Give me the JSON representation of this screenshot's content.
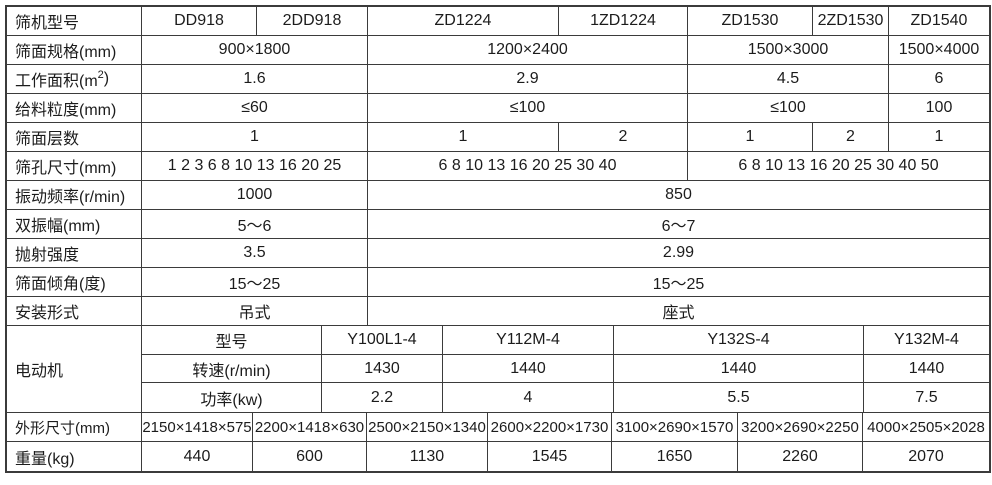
{
  "colors": {
    "background": "#ffffff",
    "border": "#3b3b3b",
    "text": "#1c1c1c"
  },
  "table": {
    "rows": {
      "model": {
        "label": "筛机型号",
        "values": [
          "DD918",
          "2DD918",
          "ZD1224",
          "1ZD1224",
          "ZD1530",
          "2ZD1530",
          "ZD1540"
        ]
      },
      "screen_spec": {
        "label": "筛面规格(mm)",
        "values": [
          "900×1800",
          "1200×2400",
          "1500×3000",
          "1500×4000"
        ]
      },
      "work_area": {
        "label_prefix": "工作面积(m",
        "label_sup": "2",
        "label_suffix": ")",
        "values": [
          "1.6",
          "2.9",
          "4.5",
          "6"
        ]
      },
      "feed_size": {
        "label": "给料粒度(mm)",
        "values": [
          "≤60",
          "≤100",
          "≤100",
          "100"
        ]
      },
      "layers": {
        "label": "筛面层数",
        "values": [
          "1",
          "1",
          "2",
          "1",
          "2",
          "1"
        ]
      },
      "mesh_size": {
        "label": "筛孔尺寸(mm)",
        "values": [
          "1 2 3 6 8 10 13 16 20 25",
          "6 8 10 13 16 20 25 30 40",
          "6 8 10 13 16 20 25 30 40 50"
        ]
      },
      "frequency": {
        "label": "振动频率(r/min)",
        "values": [
          "1000",
          "850"
        ]
      },
      "amplitude": {
        "label": "双振幅(mm)",
        "values": [
          "5～6",
          "6～7"
        ]
      },
      "throw_intensity": {
        "label": "抛射强度",
        "values": [
          "3.5",
          "2.99"
        ]
      },
      "incline": {
        "label": "筛面倾角(度)",
        "values": [
          "15～25",
          "15～25"
        ]
      },
      "install": {
        "label": "安装形式",
        "values": [
          "吊式",
          "座式"
        ]
      },
      "motor": {
        "label": "电动机",
        "model": {
          "label": "型号",
          "values": [
            "Y100L1-4",
            "Y112M-4",
            "Y132S-4",
            "Y132M-4"
          ]
        },
        "speed": {
          "label": "转速(r/min)",
          "values": [
            "1430",
            "1440",
            "1440",
            "1440"
          ]
        },
        "power": {
          "label": "功率(kw)",
          "values": [
            "2.2",
            "4",
            "5.5",
            "7.5"
          ]
        }
      },
      "dimensions": {
        "label": "外形尺寸(mm)",
        "values": [
          "2150×1418×575",
          "2200×1418×630",
          "2500×2150×1340",
          "2600×2200×1730",
          "3100×2690×1570",
          "3200×2690×2250",
          "4000×2505×2028"
        ]
      },
      "weight": {
        "label": "重量(kg)",
        "values": [
          "440",
          "600",
          "1130",
          "1545",
          "1650",
          "2260",
          "2070"
        ]
      }
    }
  }
}
